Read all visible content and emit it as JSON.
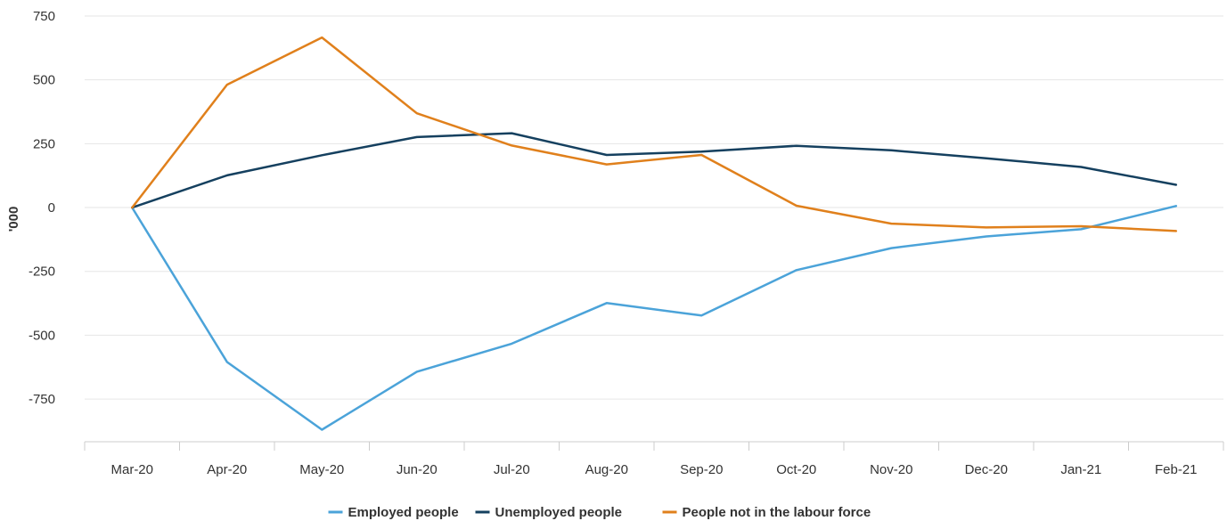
{
  "chart_data": {
    "type": "line",
    "title": "",
    "xlabel": "",
    "ylabel": "'000",
    "categories": [
      "Mar-20",
      "Apr-20",
      "May-20",
      "Jun-20",
      "Jul-20",
      "Aug-20",
      "Sep-20",
      "Oct-20",
      "Nov-20",
      "Dec-20",
      "Jan-21",
      "Feb-21"
    ],
    "ylim": [
      -917,
      750
    ],
    "yticks": [
      750,
      500,
      250,
      0,
      -250,
      -500,
      -750
    ],
    "ytick_labels": [
      "750",
      "500",
      "250",
      "0",
      "-250",
      "-500",
      "-750"
    ],
    "grid": true,
    "legend_position": "bottom",
    "series": [
      {
        "name": "Employed people",
        "color": "#4ba3d9",
        "values": [
          0,
          -605,
          -870,
          -643,
          -533,
          -374,
          -423,
          -245,
          -159,
          -113,
          -85,
          6
        ]
      },
      {
        "name": "Unemployed people",
        "color": "#15405f",
        "values": [
          0,
          126,
          205,
          276,
          291,
          206,
          219,
          242,
          224,
          193,
          159,
          89
        ]
      },
      {
        "name": "People not in the labour force",
        "color": "#e0801c",
        "values": [
          0,
          481,
          666,
          369,
          243,
          169,
          206,
          7,
          -63,
          -78,
          -73,
          -92
        ]
      }
    ]
  }
}
